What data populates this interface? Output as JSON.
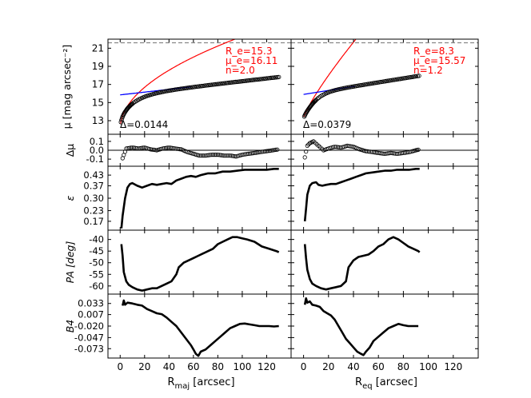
{
  "figure": {
    "xlabel_left": {
      "main": "R",
      "sub": "maj",
      "unit": " [arcsec]"
    },
    "xlabel_right": {
      "main": "R",
      "sub": "eq",
      "unit": " [arcsec]"
    },
    "x_ticks": [
      "0",
      "20",
      "40",
      "60",
      "80",
      "100",
      "120"
    ]
  },
  "colors": {
    "sersic": "#ff0000",
    "exponential": "#0000ff",
    "data": "#000000",
    "annotation": "#ff0000"
  },
  "chart_data": [
    {
      "type": "scatter",
      "panel": "surface-brightness",
      "ylabel": "μ [mag arcsec⁻²]",
      "yticks": [
        "13",
        "15",
        "17",
        "19",
        "21"
      ],
      "ylim": [
        22.0,
        11.5
      ],
      "xlim": [
        -10,
        140
      ],
      "left": {
        "params": {
          "re": "R_e=15.3",
          "mue": "μ_e=16.11",
          "n": "n=2.0"
        },
        "delta": "Δ=0.0144",
        "xmax": 130,
        "disk": {
          "mu0": 15.85,
          "h": 71.5
        },
        "bulge": {
          "mue": 16.11,
          "re": 15.3,
          "n": 2.0
        }
      },
      "right": {
        "params": {
          "re": "R_e=8.3",
          "mue": "μ_e=15.57",
          "n": "n=1.2"
        },
        "delta": "Δ=0.0379",
        "xmax": 93,
        "disk": {
          "mu0": 15.9,
          "h": 49
        },
        "bulge": {
          "mue": 15.57,
          "re": 8.3,
          "n": 1.2
        }
      }
    },
    {
      "type": "scatter",
      "panel": "residuals",
      "ylabel": "Δμ",
      "yticks": [
        "-0.1",
        "0.0",
        "0.1"
      ],
      "ylim": [
        0.18,
        -0.18
      ],
      "left": [
        [
          2,
          -0.09
        ],
        [
          5,
          0.02
        ],
        [
          10,
          0.03
        ],
        [
          15,
          0.02
        ],
        [
          20,
          0.03
        ],
        [
          25,
          0.01
        ],
        [
          30,
          0.0
        ],
        [
          35,
          0.02
        ],
        [
          40,
          0.03
        ],
        [
          45,
          0.02
        ],
        [
          50,
          0.01
        ],
        [
          55,
          -0.02
        ],
        [
          60,
          -0.04
        ],
        [
          65,
          -0.06
        ],
        [
          70,
          -0.06
        ],
        [
          75,
          -0.05
        ],
        [
          80,
          -0.05
        ],
        [
          85,
          -0.06
        ],
        [
          90,
          -0.06
        ],
        [
          95,
          -0.07
        ],
        [
          100,
          -0.05
        ],
        [
          105,
          -0.04
        ],
        [
          110,
          -0.03
        ],
        [
          115,
          -0.02
        ],
        [
          120,
          -0.01
        ],
        [
          125,
          0.0
        ],
        [
          130,
          0.01
        ]
      ],
      "right": [
        [
          1,
          -0.08
        ],
        [
          3,
          0.05
        ],
        [
          5,
          0.08
        ],
        [
          8,
          0.1
        ],
        [
          12,
          0.05
        ],
        [
          16,
          0.0
        ],
        [
          20,
          0.02
        ],
        [
          25,
          0.04
        ],
        [
          30,
          0.03
        ],
        [
          35,
          0.05
        ],
        [
          40,
          0.04
        ],
        [
          45,
          0.01
        ],
        [
          50,
          -0.01
        ],
        [
          55,
          -0.02
        ],
        [
          60,
          -0.03
        ],
        [
          65,
          -0.04
        ],
        [
          70,
          -0.03
        ],
        [
          75,
          -0.04
        ],
        [
          80,
          -0.03
        ],
        [
          85,
          -0.02
        ],
        [
          90,
          0.0
        ],
        [
          93,
          0.01
        ]
      ]
    },
    {
      "type": "line",
      "panel": "ellipticity",
      "ylabel": "ε",
      "yticks": [
        "0.43",
        "0.37",
        "0.30",
        "0.23",
        "0.17"
      ],
      "ylim": [
        0.48,
        0.12
      ],
      "left": [
        [
          1,
          0.13
        ],
        [
          2,
          0.2
        ],
        [
          4,
          0.3
        ],
        [
          6,
          0.36
        ],
        [
          8,
          0.38
        ],
        [
          10,
          0.385
        ],
        [
          14,
          0.37
        ],
        [
          18,
          0.36
        ],
        [
          22,
          0.37
        ],
        [
          26,
          0.38
        ],
        [
          30,
          0.375
        ],
        [
          34,
          0.38
        ],
        [
          38,
          0.385
        ],
        [
          42,
          0.38
        ],
        [
          46,
          0.4
        ],
        [
          50,
          0.41
        ],
        [
          54,
          0.42
        ],
        [
          58,
          0.425
        ],
        [
          62,
          0.42
        ],
        [
          66,
          0.43
        ],
        [
          72,
          0.44
        ],
        [
          78,
          0.44
        ],
        [
          84,
          0.45
        ],
        [
          90,
          0.45
        ],
        [
          96,
          0.455
        ],
        [
          102,
          0.46
        ],
        [
          108,
          0.46
        ],
        [
          114,
          0.46
        ],
        [
          120,
          0.46
        ],
        [
          126,
          0.465
        ],
        [
          130,
          0.465
        ]
      ],
      "right": [
        [
          1,
          0.17
        ],
        [
          2,
          0.24
        ],
        [
          3,
          0.32
        ],
        [
          5,
          0.37
        ],
        [
          7,
          0.385
        ],
        [
          10,
          0.39
        ],
        [
          12,
          0.375
        ],
        [
          15,
          0.37
        ],
        [
          18,
          0.375
        ],
        [
          22,
          0.38
        ],
        [
          26,
          0.38
        ],
        [
          30,
          0.39
        ],
        [
          34,
          0.4
        ],
        [
          38,
          0.41
        ],
        [
          42,
          0.42
        ],
        [
          46,
          0.43
        ],
        [
          50,
          0.44
        ],
        [
          55,
          0.445
        ],
        [
          60,
          0.45
        ],
        [
          65,
          0.455
        ],
        [
          70,
          0.455
        ],
        [
          75,
          0.46
        ],
        [
          80,
          0.46
        ],
        [
          85,
          0.46
        ],
        [
          90,
          0.465
        ],
        [
          93,
          0.465
        ]
      ]
    },
    {
      "type": "line",
      "panel": "position-angle",
      "ylabel": "PA [deg]",
      "yticks": [
        "-40",
        "-45",
        "-50",
        "-55",
        "-60"
      ],
      "ylim": [
        -36,
        -63.5
      ],
      "left": [
        [
          1,
          -42
        ],
        [
          2,
          -47
        ],
        [
          3,
          -54
        ],
        [
          5,
          -58
        ],
        [
          7,
          -59.5
        ],
        [
          10,
          -60.5
        ],
        [
          14,
          -61.5
        ],
        [
          18,
          -62
        ],
        [
          22,
          -61.5
        ],
        [
          26,
          -61
        ],
        [
          30,
          -61
        ],
        [
          34,
          -60
        ],
        [
          38,
          -59
        ],
        [
          42,
          -58
        ],
        [
          46,
          -55
        ],
        [
          48,
          -52
        ],
        [
          52,
          -50
        ],
        [
          56,
          -49
        ],
        [
          60,
          -48
        ],
        [
          64,
          -47
        ],
        [
          68,
          -46
        ],
        [
          72,
          -45
        ],
        [
          76,
          -44
        ],
        [
          80,
          -42
        ],
        [
          84,
          -41
        ],
        [
          88,
          -40
        ],
        [
          92,
          -39
        ],
        [
          96,
          -39
        ],
        [
          100,
          -39.5
        ],
        [
          104,
          -40
        ],
        [
          110,
          -41
        ],
        [
          116,
          -43
        ],
        [
          122,
          -44
        ],
        [
          128,
          -45
        ],
        [
          130,
          -45.5
        ]
      ],
      "right": [
        [
          1,
          -42
        ],
        [
          2,
          -48
        ],
        [
          3,
          -53
        ],
        [
          5,
          -57
        ],
        [
          7,
          -59
        ],
        [
          10,
          -60
        ],
        [
          14,
          -61
        ],
        [
          18,
          -61.5
        ],
        [
          22,
          -61
        ],
        [
          26,
          -60.5
        ],
        [
          30,
          -60
        ],
        [
          34,
          -58
        ],
        [
          36,
          -52
        ],
        [
          40,
          -49
        ],
        [
          44,
          -47.5
        ],
        [
          48,
          -47
        ],
        [
          52,
          -46.5
        ],
        [
          56,
          -45
        ],
        [
          60,
          -43
        ],
        [
          64,
          -42
        ],
        [
          68,
          -40
        ],
        [
          72,
          -39
        ],
        [
          76,
          -40
        ],
        [
          80,
          -41.5
        ],
        [
          84,
          -43
        ],
        [
          88,
          -44
        ],
        [
          92,
          -45
        ],
        [
          93,
          -45.5
        ]
      ]
    },
    {
      "type": "line",
      "panel": "b4",
      "ylabel": "B4",
      "yticks": [
        "0.033",
        "0.007",
        "-0.020",
        "-0.047",
        "-0.073"
      ],
      "ylim": [
        0.055,
        -0.095
      ],
      "left": [
        [
          2,
          0.028
        ],
        [
          3,
          0.04
        ],
        [
          4,
          0.03
        ],
        [
          6,
          0.035
        ],
        [
          10,
          0.033
        ],
        [
          14,
          0.03
        ],
        [
          18,
          0.028
        ],
        [
          22,
          0.02
        ],
        [
          26,
          0.015
        ],
        [
          30,
          0.01
        ],
        [
          34,
          0.008
        ],
        [
          38,
          0.0
        ],
        [
          42,
          -0.01
        ],
        [
          46,
          -0.02
        ],
        [
          50,
          -0.035
        ],
        [
          54,
          -0.05
        ],
        [
          58,
          -0.065
        ],
        [
          60,
          -0.075
        ],
        [
          62,
          -0.085
        ],
        [
          64,
          -0.09
        ],
        [
          66,
          -0.08
        ],
        [
          70,
          -0.075
        ],
        [
          74,
          -0.065
        ],
        [
          78,
          -0.055
        ],
        [
          82,
          -0.045
        ],
        [
          86,
          -0.035
        ],
        [
          90,
          -0.025
        ],
        [
          94,
          -0.02
        ],
        [
          98,
          -0.015
        ],
        [
          102,
          -0.014
        ],
        [
          106,
          -0.016
        ],
        [
          110,
          -0.018
        ],
        [
          114,
          -0.02
        ],
        [
          118,
          -0.02
        ],
        [
          122,
          -0.02
        ],
        [
          126,
          -0.021
        ],
        [
          130,
          -0.02
        ]
      ],
      "right": [
        [
          1,
          0.03
        ],
        [
          2,
          0.045
        ],
        [
          3,
          0.035
        ],
        [
          5,
          0.038
        ],
        [
          7,
          0.03
        ],
        [
          10,
          0.028
        ],
        [
          13,
          0.025
        ],
        [
          16,
          0.015
        ],
        [
          19,
          0.01
        ],
        [
          22,
          0.005
        ],
        [
          25,
          -0.005
        ],
        [
          28,
          -0.02
        ],
        [
          31,
          -0.035
        ],
        [
          34,
          -0.05
        ],
        [
          37,
          -0.06
        ],
        [
          40,
          -0.07
        ],
        [
          43,
          -0.08
        ],
        [
          46,
          -0.085
        ],
        [
          48,
          -0.088
        ],
        [
          50,
          -0.08
        ],
        [
          53,
          -0.07
        ],
        [
          56,
          -0.055
        ],
        [
          60,
          -0.045
        ],
        [
          64,
          -0.035
        ],
        [
          68,
          -0.025
        ],
        [
          72,
          -0.02
        ],
        [
          76,
          -0.015
        ],
        [
          80,
          -0.018
        ],
        [
          84,
          -0.02
        ],
        [
          88,
          -0.02
        ],
        [
          92,
          -0.02
        ]
      ]
    }
  ]
}
